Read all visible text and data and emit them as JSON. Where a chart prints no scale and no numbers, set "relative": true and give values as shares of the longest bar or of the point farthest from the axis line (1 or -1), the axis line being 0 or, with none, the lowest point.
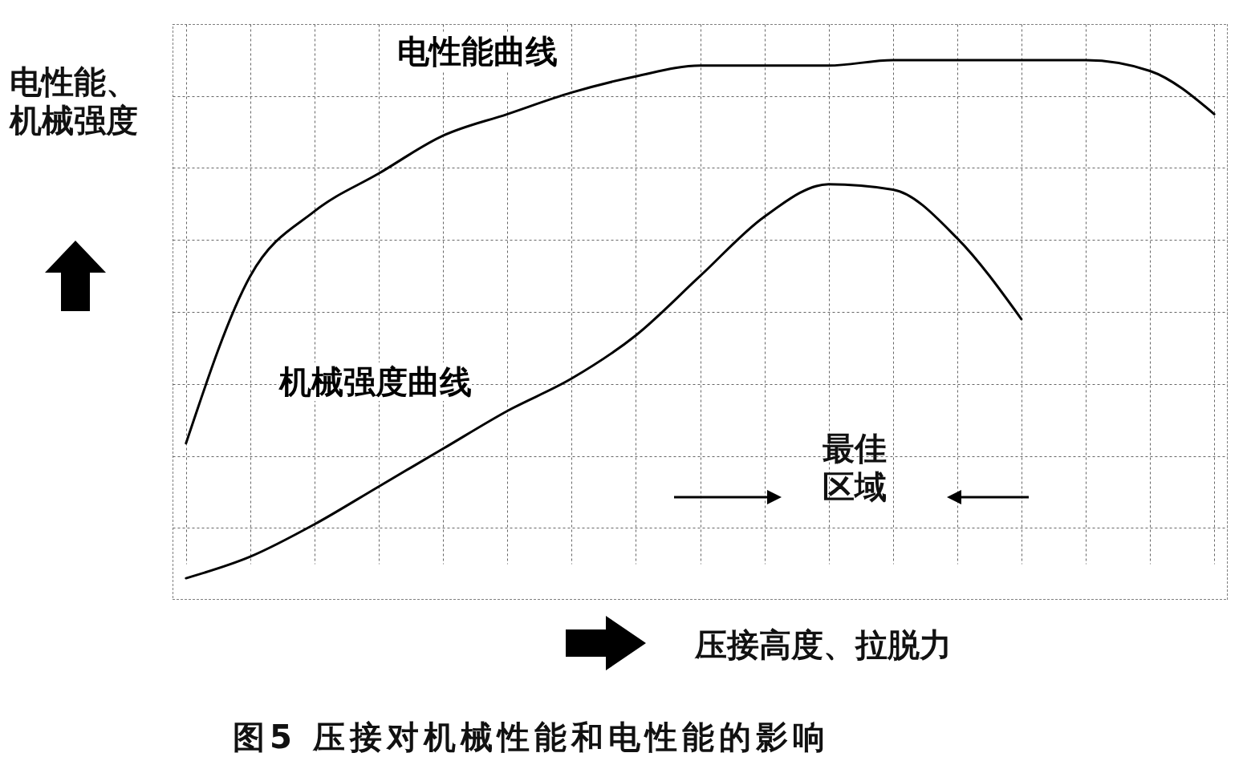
{
  "chart_data": {
    "type": "line",
    "relative": true,
    "title": "图5 压接对机械性能和电性能的影响",
    "xlabel": "压接高度、拉脱力",
    "ylabel": "电性能、机械强度",
    "annotations": [
      "最佳区域"
    ],
    "categories": [
      null,
      null,
      null,
      null,
      null,
      null,
      null,
      null,
      null,
      null,
      null,
      null,
      null,
      null,
      null,
      null,
      null
    ],
    "series": [
      {
        "name": "电性能曲线",
        "color": "#000000",
        "values": [
          0.29,
          0.6,
          0.72,
          0.79,
          0.86,
          0.9,
          0.94,
          0.97,
          0.99,
          0.99,
          0.99,
          1.0,
          1.0,
          1.0,
          1.0,
          0.98,
          0.9
        ]
      },
      {
        "name": "机械强度曲线",
        "color": "#000000",
        "values": [
          0.04,
          0.08,
          0.14,
          0.21,
          0.28,
          0.35,
          0.41,
          0.49,
          0.6,
          0.71,
          0.77,
          0.76,
          0.67,
          0.52,
          null,
          null,
          null
        ]
      }
    ],
    "grid": true,
    "marker": "none",
    "line_style": "solid"
  }
}
